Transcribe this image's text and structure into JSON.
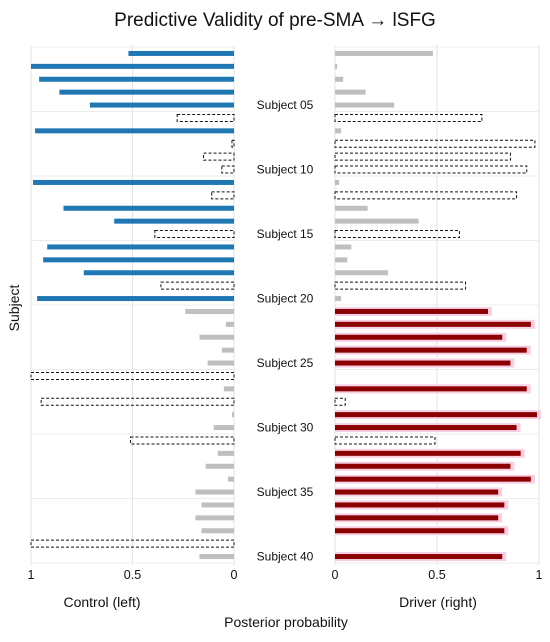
{
  "chart_data": {
    "type": "bar",
    "title": "Predictive Validity of pre-SMA → lSFG",
    "ylabel": "Subject",
    "xlabel": "Posterior probability",
    "left_panel_label": "Control (left)",
    "right_panel_label": "Driver (right)",
    "left_ticks": [
      "1",
      "0.5",
      "0"
    ],
    "right_ticks": [
      "0",
      "0.5",
      "1"
    ],
    "xlim": [
      0,
      1
    ],
    "n_subjects": 40,
    "subject_labels": [
      {
        "index": 5,
        "text": "Subject 05"
      },
      {
        "index": 10,
        "text": "Subject 10"
      },
      {
        "index": 15,
        "text": "Subject 15"
      },
      {
        "index": 20,
        "text": "Subject 20"
      },
      {
        "index": 25,
        "text": "Subject 25"
      },
      {
        "index": 30,
        "text": "Subject 30"
      },
      {
        "index": 35,
        "text": "Subject 35"
      },
      {
        "index": 40,
        "text": "Subject 40"
      }
    ],
    "styles": [
      "blue (control, true)",
      "red (driver, true)",
      "grey (low)",
      "dashed outline (misclassified)"
    ],
    "colors": {
      "blue": "#1f77b4",
      "red": "#8b0000",
      "red_shade": "#f7cfe3",
      "grey": "#bfbfbf",
      "dashed": "#111111"
    },
    "control": [
      {
        "subject": 1,
        "value": 0.52,
        "style": "blue"
      },
      {
        "subject": 2,
        "value": 1.0,
        "style": "blue"
      },
      {
        "subject": 3,
        "value": 0.96,
        "style": "blue"
      },
      {
        "subject": 4,
        "value": 0.86,
        "style": "blue"
      },
      {
        "subject": 5,
        "value": 0.71,
        "style": "blue"
      },
      {
        "subject": 6,
        "value": 0.28,
        "style": "dashed"
      },
      {
        "subject": 7,
        "value": 0.98,
        "style": "blue"
      },
      {
        "subject": 8,
        "value": 0.01,
        "style": "dashed"
      },
      {
        "subject": 9,
        "value": 0.15,
        "style": "dashed"
      },
      {
        "subject": 10,
        "value": 0.06,
        "style": "dashed"
      },
      {
        "subject": 11,
        "value": 0.99,
        "style": "blue"
      },
      {
        "subject": 12,
        "value": 0.11,
        "style": "dashed"
      },
      {
        "subject": 13,
        "value": 0.84,
        "style": "blue"
      },
      {
        "subject": 14,
        "value": 0.59,
        "style": "blue"
      },
      {
        "subject": 15,
        "value": 0.39,
        "style": "dashed"
      },
      {
        "subject": 16,
        "value": 0.92,
        "style": "blue"
      },
      {
        "subject": 17,
        "value": 0.94,
        "style": "blue"
      },
      {
        "subject": 18,
        "value": 0.74,
        "style": "blue"
      },
      {
        "subject": 19,
        "value": 0.36,
        "style": "dashed"
      },
      {
        "subject": 20,
        "value": 0.97,
        "style": "blue"
      },
      {
        "subject": 21,
        "value": 0.24,
        "style": "grey"
      },
      {
        "subject": 22,
        "value": 0.04,
        "style": "grey"
      },
      {
        "subject": 23,
        "value": 0.17,
        "style": "grey"
      },
      {
        "subject": 24,
        "value": 0.06,
        "style": "grey"
      },
      {
        "subject": 25,
        "value": 0.13,
        "style": "grey"
      },
      {
        "subject": 26,
        "value": 1.0,
        "style": "dashed"
      },
      {
        "subject": 27,
        "value": 0.05,
        "style": "grey"
      },
      {
        "subject": 28,
        "value": 0.95,
        "style": "dashed"
      },
      {
        "subject": 29,
        "value": 0.01,
        "style": "grey"
      },
      {
        "subject": 30,
        "value": 0.1,
        "style": "grey"
      },
      {
        "subject": 31,
        "value": 0.51,
        "style": "dashed"
      },
      {
        "subject": 32,
        "value": 0.08,
        "style": "grey"
      },
      {
        "subject": 33,
        "value": 0.14,
        "style": "grey"
      },
      {
        "subject": 34,
        "value": 0.03,
        "style": "grey"
      },
      {
        "subject": 35,
        "value": 0.19,
        "style": "grey"
      },
      {
        "subject": 36,
        "value": 0.16,
        "style": "grey"
      },
      {
        "subject": 37,
        "value": 0.19,
        "style": "grey"
      },
      {
        "subject": 38,
        "value": 0.16,
        "style": "grey"
      },
      {
        "subject": 39,
        "value": 1.0,
        "style": "dashed"
      },
      {
        "subject": 40,
        "value": 0.17,
        "style": "grey"
      }
    ],
    "driver": [
      {
        "subject": 1,
        "value": 0.48,
        "style": "grey"
      },
      {
        "subject": 2,
        "value": 0.01,
        "style": "grey"
      },
      {
        "subject": 3,
        "value": 0.04,
        "style": "grey"
      },
      {
        "subject": 4,
        "value": 0.15,
        "style": "grey"
      },
      {
        "subject": 5,
        "value": 0.29,
        "style": "grey"
      },
      {
        "subject": 6,
        "value": 0.72,
        "style": "dashed"
      },
      {
        "subject": 7,
        "value": 0.03,
        "style": "grey"
      },
      {
        "subject": 8,
        "value": 0.98,
        "style": "dashed"
      },
      {
        "subject": 9,
        "value": 0.86,
        "style": "dashed"
      },
      {
        "subject": 10,
        "value": 0.94,
        "style": "dashed"
      },
      {
        "subject": 11,
        "value": 0.02,
        "style": "grey"
      },
      {
        "subject": 12,
        "value": 0.89,
        "style": "dashed"
      },
      {
        "subject": 13,
        "value": 0.16,
        "style": "grey"
      },
      {
        "subject": 14,
        "value": 0.41,
        "style": "grey"
      },
      {
        "subject": 15,
        "value": 0.61,
        "style": "dashed"
      },
      {
        "subject": 16,
        "value": 0.08,
        "style": "grey"
      },
      {
        "subject": 17,
        "value": 0.06,
        "style": "grey"
      },
      {
        "subject": 18,
        "value": 0.26,
        "style": "grey"
      },
      {
        "subject": 19,
        "value": 0.64,
        "style": "dashed"
      },
      {
        "subject": 20,
        "value": 0.03,
        "style": "grey"
      },
      {
        "subject": 21,
        "value": 0.75,
        "style": "red"
      },
      {
        "subject": 22,
        "value": 0.96,
        "style": "red"
      },
      {
        "subject": 23,
        "value": 0.82,
        "style": "red"
      },
      {
        "subject": 24,
        "value": 0.94,
        "style": "red"
      },
      {
        "subject": 25,
        "value": 0.86,
        "style": "red"
      },
      {
        "subject": 26,
        "value": 0.0,
        "style": "none"
      },
      {
        "subject": 27,
        "value": 0.94,
        "style": "red"
      },
      {
        "subject": 28,
        "value": 0.05,
        "style": "dashed"
      },
      {
        "subject": 29,
        "value": 0.99,
        "style": "red"
      },
      {
        "subject": 30,
        "value": 0.89,
        "style": "red"
      },
      {
        "subject": 31,
        "value": 0.49,
        "style": "dashed"
      },
      {
        "subject": 32,
        "value": 0.91,
        "style": "red"
      },
      {
        "subject": 33,
        "value": 0.86,
        "style": "red"
      },
      {
        "subject": 34,
        "value": 0.96,
        "style": "red"
      },
      {
        "subject": 35,
        "value": 0.8,
        "style": "red"
      },
      {
        "subject": 36,
        "value": 0.83,
        "style": "red"
      },
      {
        "subject": 37,
        "value": 0.8,
        "style": "red"
      },
      {
        "subject": 38,
        "value": 0.83,
        "style": "red"
      },
      {
        "subject": 39,
        "value": 0.0,
        "style": "none"
      },
      {
        "subject": 40,
        "value": 0.82,
        "style": "red"
      }
    ]
  }
}
